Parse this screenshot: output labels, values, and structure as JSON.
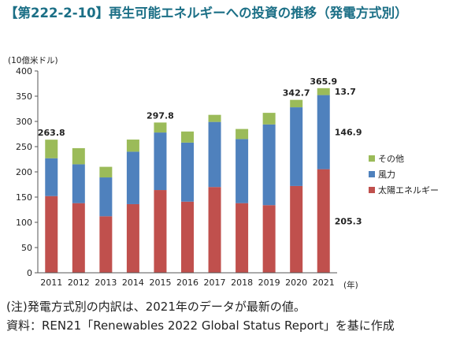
{
  "title": "【第222-2-10】再生可能エネルギーへの投資の推移（発電方式別）",
  "notes": [
    "(注)発電方式別の内訳は、2021年のデータが最新の値。",
    "資料：REN21「Renewables 2022 Global Status Report」を基に作成"
  ],
  "colors": {
    "title": "#1b6f86",
    "solar": "#c0504d",
    "wind": "#4f81bd",
    "other": "#9bbb59"
  },
  "chart_data": {
    "type": "bar",
    "stacked": true,
    "title": "",
    "xlabel": "(年)",
    "ylabel": "(10億米ドル)",
    "ylim": [
      0,
      400
    ],
    "yticks": [
      0,
      50,
      100,
      150,
      200,
      250,
      300,
      350,
      400
    ],
    "grid": false,
    "legend_position": "right",
    "categories": [
      "2011",
      "2012",
      "2013",
      "2014",
      "2015",
      "2016",
      "2017",
      "2018",
      "2019",
      "2020",
      "2021"
    ],
    "series": [
      {
        "name": "太陽エネルギー",
        "color": "#c0504d",
        "values": [
          152,
          138,
          112,
          136,
          164,
          141,
          170,
          138,
          134,
          172,
          205.3
        ]
      },
      {
        "name": "風力",
        "color": "#4f81bd",
        "values": [
          75,
          77,
          77,
          104,
          114,
          117,
          129,
          127,
          160,
          156,
          146.9
        ]
      },
      {
        "name": "その他",
        "color": "#9bbb59",
        "values": [
          36.8,
          32,
          21,
          24,
          19.8,
          22,
          14,
          20,
          23,
          14.7,
          13.7
        ]
      }
    ],
    "annotations": [
      {
        "label": "263.8",
        "category": "2011",
        "kind": "total"
      },
      {
        "label": "297.8",
        "category": "2015",
        "kind": "total"
      },
      {
        "label": "342.7",
        "category": "2020",
        "kind": "total"
      },
      {
        "label": "365.9",
        "category": "2021",
        "kind": "total"
      },
      {
        "label": "13.7",
        "category": "2021",
        "series": "その他",
        "kind": "segment"
      },
      {
        "label": "146.9",
        "category": "2021",
        "series": "風力",
        "kind": "segment"
      },
      {
        "label": "205.3",
        "category": "2021",
        "series": "太陽エネルギー",
        "kind": "segment"
      }
    ]
  }
}
